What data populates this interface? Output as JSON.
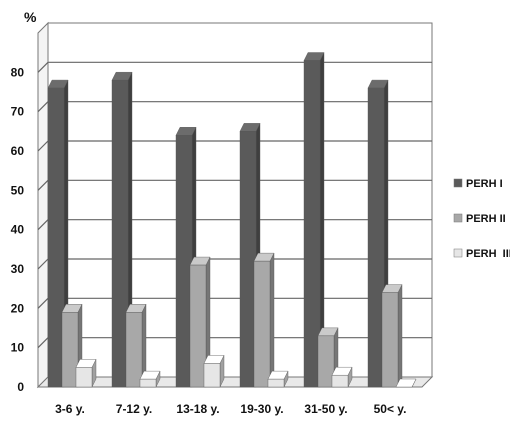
{
  "chart_data": {
    "type": "bar",
    "ylabel": "%",
    "ylim": [
      0,
      90
    ],
    "yticks": [
      0,
      10,
      20,
      30,
      40,
      50,
      60,
      70,
      80
    ],
    "categories": [
      "3-6 y.",
      "7-12 y.",
      "13-18 y.",
      "19-30 y.",
      "31-50 y.",
      "50< y."
    ],
    "series": [
      {
        "name": "PERH I",
        "color": "#5a5a5a",
        "values": [
          76,
          78,
          64,
          65,
          83,
          76
        ]
      },
      {
        "name": "PERH II",
        "color": "#a8a8a8",
        "values": [
          19,
          19,
          31,
          32,
          13,
          24
        ]
      },
      {
        "name": "PERH  III",
        "color": "#e6e6e6",
        "values": [
          5,
          2,
          6,
          2,
          3,
          0
        ]
      }
    ],
    "grid": true,
    "legend_position": "right"
  }
}
